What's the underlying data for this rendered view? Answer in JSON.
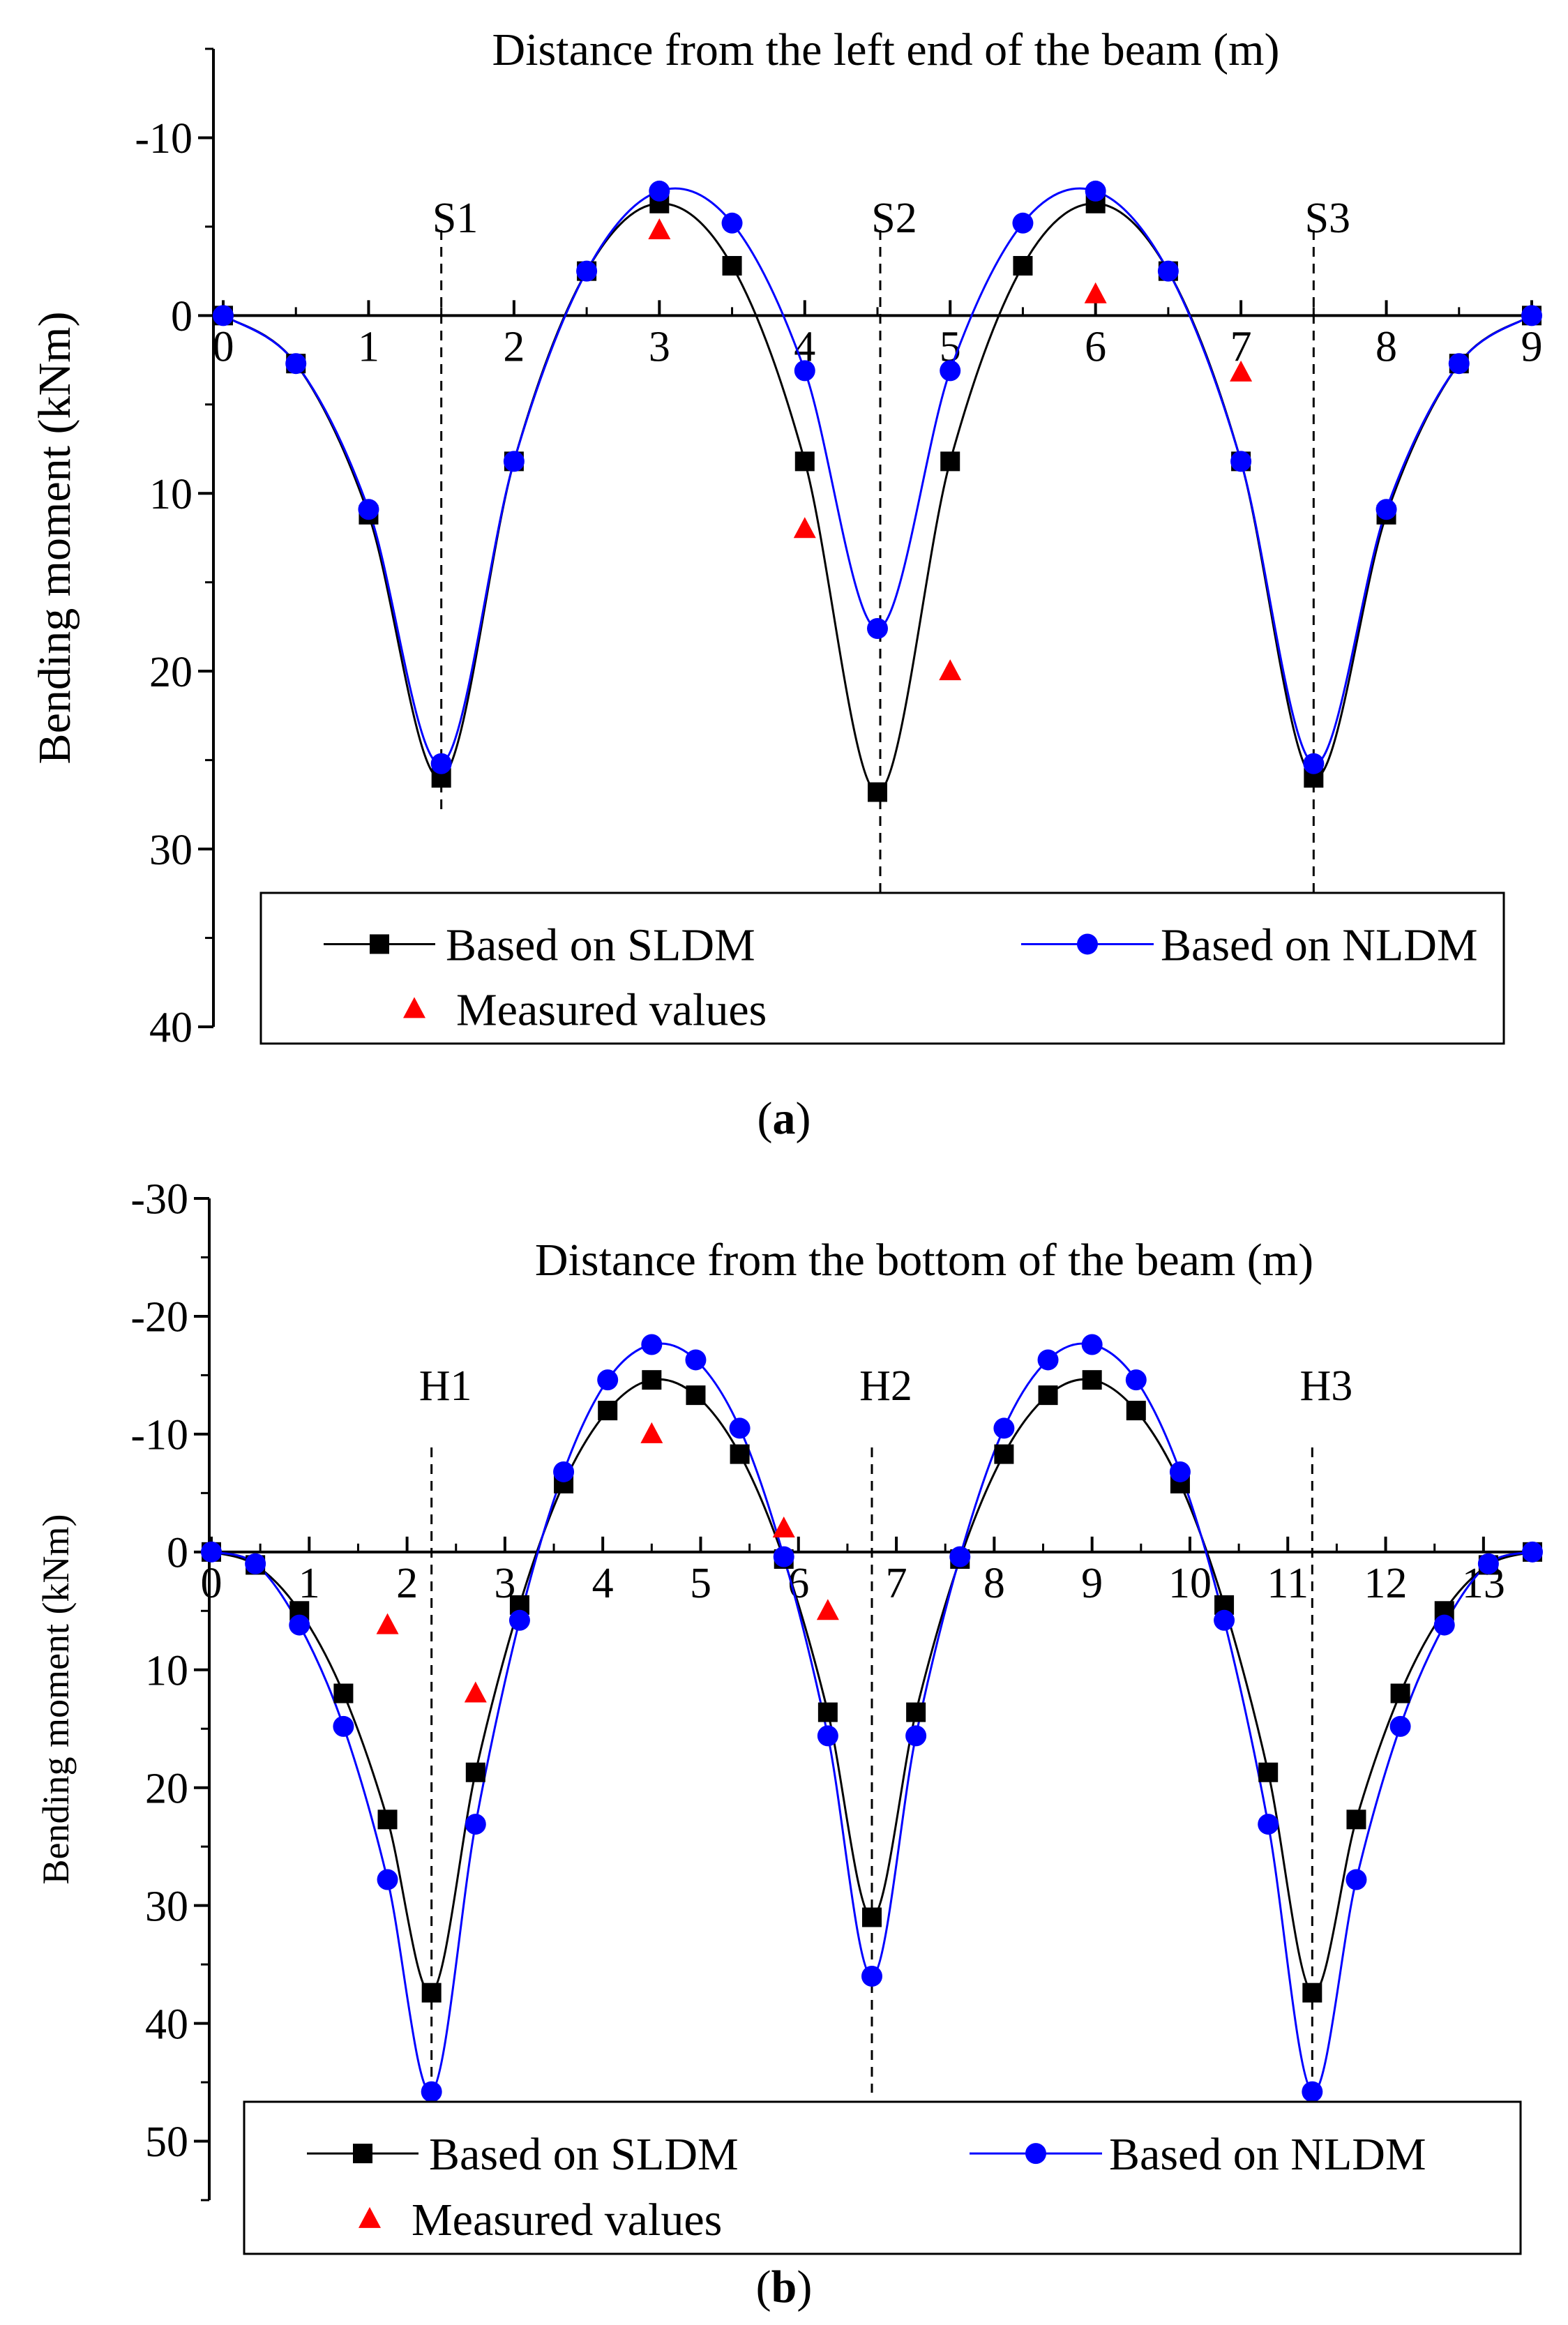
{
  "chart_data": [
    {
      "panel_label": "a",
      "type": "line",
      "title": "Distance from the left end of the beam (m)",
      "xlabel": "Distance from the left end of the beam (m)",
      "ylabel": "Bending moment (kNm)",
      "xlim": [
        0,
        9
      ],
      "ylim": [
        40,
        -15
      ],
      "y_inverted": true,
      "x_ticks": [
        "0",
        "1",
        "2",
        "3",
        "4",
        "5",
        "6",
        "7",
        "8",
        "9"
      ],
      "y_ticks": [
        "-10",
        "0",
        "10",
        "20",
        "30",
        "40"
      ],
      "support_labels": [
        {
          "label": "S1",
          "x": 1.5
        },
        {
          "label": "S2",
          "x": 4.5
        },
        {
          "label": "S3",
          "x": 7.5
        }
      ],
      "legend": {
        "placement": "bottom-center",
        "entries": [
          "Based on SLDM",
          "Based on NLDM",
          "Measured values"
        ]
      },
      "series": [
        {
          "name": "Based on SLDM",
          "color": "#000000",
          "marker": "square",
          "x": [
            0,
            0.5,
            1.0,
            1.5,
            2.0,
            2.5,
            3.0,
            3.5,
            4.0,
            4.5,
            5.0,
            5.5,
            6.0,
            6.5,
            7.0,
            7.5,
            8.0,
            8.5,
            9.0
          ],
          "y": [
            0,
            2.7,
            11.2,
            26,
            8.2,
            -2.5,
            -6.3,
            -2.8,
            8.2,
            26.8,
            8.2,
            -2.8,
            -6.3,
            -2.5,
            8.2,
            26,
            11.2,
            2.7,
            0
          ]
        },
        {
          "name": "Based on NLDM",
          "color": "#0000ff",
          "marker": "circle",
          "x": [
            0,
            0.5,
            1.0,
            1.5,
            2.0,
            2.5,
            3.0,
            3.5,
            4.0,
            4.5,
            5.0,
            5.5,
            6.0,
            6.5,
            7.0,
            7.5,
            8.0,
            8.5,
            9.0
          ],
          "y": [
            0,
            2.7,
            10.9,
            25.2,
            8.2,
            -2.5,
            -7.0,
            -5.2,
            3.1,
            17.6,
            3.1,
            -5.2,
            -7.0,
            -2.5,
            8.2,
            25.2,
            10.9,
            2.7,
            0
          ]
        },
        {
          "name": "Measured values",
          "color": "#ff0000",
          "marker": "triangle",
          "x": [
            3.0,
            4.0,
            5.0,
            6.0,
            7.0
          ],
          "y": [
            -4.8,
            12.0,
            20.0,
            -1.2,
            3.2
          ]
        }
      ]
    },
    {
      "panel_label": "b",
      "type": "line",
      "title": "Distance from the bottom of the beam (m)",
      "xlabel": "Distance from the bottom of the beam (m)",
      "ylabel": "Bending moment (kNm)",
      "xlim": [
        0,
        13.5
      ],
      "ylim": [
        55,
        -30
      ],
      "y_inverted": true,
      "x_ticks": [
        "0",
        "1",
        "2",
        "3",
        "4",
        "5",
        "6",
        "7",
        "8",
        "9",
        "10",
        "11",
        "12",
        "13"
      ],
      "y_ticks": [
        "-30",
        "-20",
        "-10",
        "0",
        "10",
        "20",
        "30",
        "40",
        "50"
      ],
      "support_labels": [
        {
          "label": "H1",
          "x": 2.25
        },
        {
          "label": "H2",
          "x": 6.75
        },
        {
          "label": "H3",
          "x": 11.25
        }
      ],
      "legend": {
        "placement": "bottom-center",
        "entries": [
          "Based on SLDM",
          "Based on NLDM",
          "Measured values"
        ]
      },
      "series": [
        {
          "name": "Based on SLDM",
          "color": "#000000",
          "marker": "square",
          "x": [
            0,
            0.45,
            0.9,
            1.35,
            1.8,
            2.25,
            2.7,
            3.15,
            3.6,
            4.05,
            4.5,
            4.95,
            5.4,
            5.85,
            6.3,
            6.75,
            7.2,
            7.65,
            8.1,
            8.55,
            9.0,
            9.45,
            9.9,
            10.35,
            10.8,
            11.25,
            11.7,
            12.15,
            12.6,
            13.05,
            13.5
          ],
          "y": [
            0,
            1.1,
            5.0,
            12.0,
            22.7,
            37.4,
            18.7,
            4.5,
            -5.8,
            -12.0,
            -14.6,
            -13.3,
            -8.3,
            0.6,
            13.6,
            31.0,
            13.6,
            0.6,
            -8.3,
            -13.3,
            -14.6,
            -12.0,
            -5.8,
            4.5,
            18.7,
            37.4,
            22.7,
            12.0,
            5.0,
            1.1,
            0
          ]
        },
        {
          "name": "Based on NLDM",
          "color": "#0000ff",
          "marker": "circle",
          "x": [
            0,
            0.45,
            0.9,
            1.35,
            1.8,
            2.25,
            2.7,
            3.15,
            3.6,
            4.05,
            4.5,
            4.95,
            5.4,
            5.85,
            6.3,
            6.75,
            7.2,
            7.65,
            8.1,
            8.55,
            9.0,
            9.45,
            9.9,
            10.35,
            10.8,
            11.25,
            11.7,
            12.15,
            12.6,
            13.05,
            13.5
          ],
          "y": [
            0,
            1.0,
            6.2,
            14.8,
            27.8,
            45.8,
            23.1,
            5.8,
            -6.8,
            -14.6,
            -17.6,
            -16.3,
            -10.5,
            0.4,
            15.6,
            36.0,
            15.6,
            0.4,
            -10.5,
            -16.3,
            -17.6,
            -14.6,
            -6.8,
            5.8,
            23.1,
            45.8,
            27.8,
            14.8,
            6.2,
            1.0,
            0
          ]
        },
        {
          "name": "Measured values",
          "color": "#ff0000",
          "marker": "triangle",
          "x": [
            1.8,
            2.7,
            4.5,
            5.85,
            6.3
          ],
          "y": [
            6.2,
            12.0,
            -10.0,
            -2.0,
            5.0
          ]
        }
      ]
    }
  ]
}
